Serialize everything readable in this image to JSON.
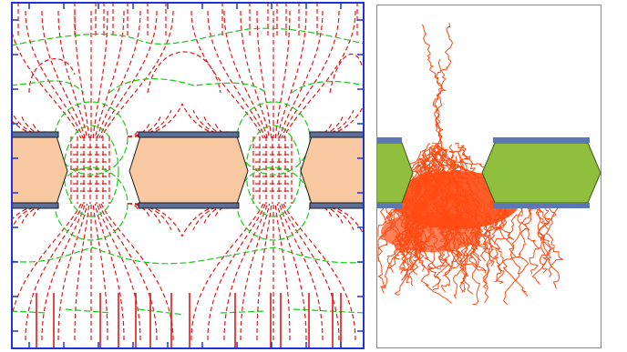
{
  "figure": {
    "left_panel": {
      "kind": "field-line simulation",
      "colors": {
        "frame": "#1f33d6",
        "field_lines": "#e01818",
        "equipotentials": "#19c919",
        "dielectric": "#f8c9a0",
        "electrode": "#5b6f99",
        "electrode_edge": "#1a1a1a"
      }
    },
    "right_panel": {
      "kind": "avalanche simulation",
      "colors": {
        "frame": "#8a8a8a",
        "avalanche": "#ff4a12",
        "dielectric": "#8fbf3c",
        "dielectric_edge": "#3d5a14",
        "electrode": "#5b78b4"
      }
    }
  }
}
